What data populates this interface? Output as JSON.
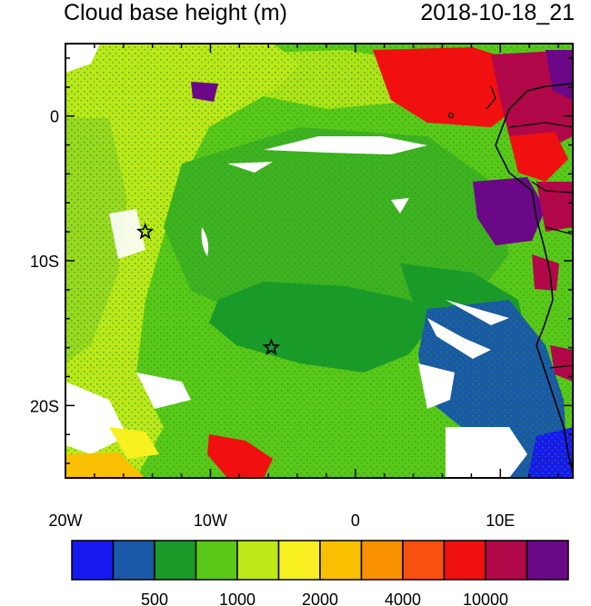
{
  "title": "Cloud base height (m)",
  "timestamp": "2018-10-18_21",
  "map": {
    "lon_range": [
      -20,
      15
    ],
    "lat_range": [
      -25,
      5
    ],
    "x_ticks": [
      {
        "lon": -20,
        "label": "20W"
      },
      {
        "lon": -10,
        "label": "10W"
      },
      {
        "lon": 0,
        "label": "0"
      },
      {
        "lon": 10,
        "label": "10E"
      }
    ],
    "y_ticks": [
      {
        "lat": 0,
        "label": "0"
      },
      {
        "lat": -10,
        "label": "10S"
      },
      {
        "lat": -20,
        "label": "20S"
      }
    ],
    "markers": [
      {
        "name": "star-marker-1",
        "lon": -14.5,
        "lat": -8
      },
      {
        "name": "star-marker-2",
        "lon": -5.8,
        "lat": -16
      }
    ]
  },
  "colorbar": {
    "colors": [
      "#1818f0",
      "#1a58a8",
      "#1a9a28",
      "#5ac818",
      "#bce818",
      "#f8f020",
      "#f8c000",
      "#f89000",
      "#f85010",
      "#f01010",
      "#b00848",
      "#6a0888"
    ],
    "labels": [
      {
        "text": "500",
        "boundary": 2
      },
      {
        "text": "1000",
        "boundary": 4
      },
      {
        "text": "2000",
        "boundary": 6
      },
      {
        "text": "4000",
        "boundary": 8
      },
      {
        "text": "10000",
        "boundary": 10
      }
    ]
  }
}
